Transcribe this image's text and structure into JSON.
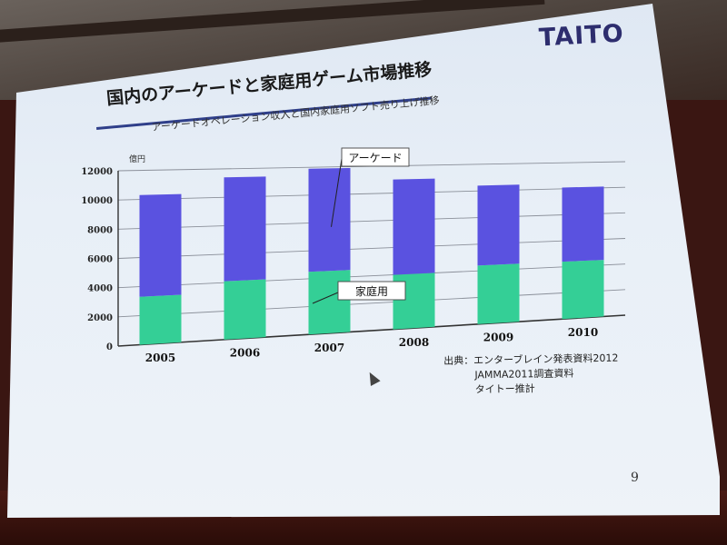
{
  "slide": {
    "logo": "TAITO",
    "title": "国内のアーケードと家庭用ゲーム市場推移",
    "subtitle": "アーケードオペレーション収入と国内家庭用ソフト売り上げ推移",
    "source_lines": [
      "出典：エンターブレイン発表資料2012",
      "JAMMA2011調査資料",
      "タイトー推計"
    ],
    "page_number": "9"
  },
  "colors": {
    "arcade": "#5a52e0",
    "home": "#34cf96",
    "grid": "#8a8f99"
  },
  "chart_data": {
    "type": "bar",
    "stacked": true,
    "categories": [
      "2005",
      "2006",
      "2007",
      "2008",
      "2009",
      "2010"
    ],
    "series": [
      {
        "name": "家庭用",
        "values": [
          3300,
          4100,
          4500,
          4000,
          4400,
          4400
        ]
      },
      {
        "name": "アーケード",
        "values": [
          7000,
          7300,
          7400,
          7000,
          6000,
          5700
        ]
      }
    ],
    "ylabel": "億円",
    "ylim": [
      0,
      12000
    ],
    "yticks": [
      0,
      2000,
      4000,
      6000,
      8000,
      10000,
      12000
    ],
    "grid": true
  }
}
